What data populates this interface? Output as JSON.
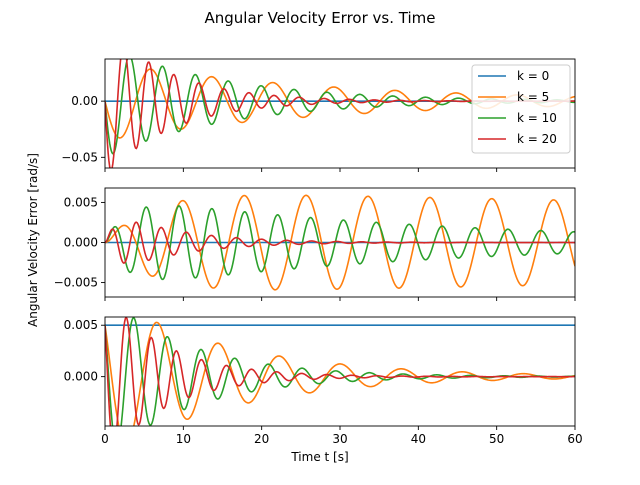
{
  "chart_data": {
    "type": "line",
    "title": "Angular Velocity Error vs. Time",
    "xlabel": "Time t [s]",
    "ylabel": "Angular Velocity Error [rad/s]",
    "xlim": [
      0,
      60
    ],
    "x_ticks": [
      0,
      10,
      20,
      30,
      40,
      50,
      60
    ],
    "x_tick_labels": [
      "0",
      "10",
      "20",
      "30",
      "40",
      "50",
      "60"
    ],
    "grid": false,
    "legend": {
      "placement": "top-right",
      "panel": 0,
      "entries": [
        {
          "label": "k = 0",
          "color": "#1f77b4"
        },
        {
          "label": "k = 5",
          "color": "#ff7f0e"
        },
        {
          "label": "k = 10",
          "color": "#2ca02c"
        },
        {
          "label": "k = 20",
          "color": "#d62728"
        }
      ]
    },
    "panels": [
      {
        "ylim": [
          -0.0595,
          0.0375
        ],
        "y_ticks": [
          0.05,
          0.0,
          -0.05
        ],
        "y_tick_labels": [
          "",
          "0.00",
          "−0.05"
        ],
        "series": [
          {
            "name": "k = 0",
            "color": "#1f77b4",
            "start": 0.0,
            "amp": 0.0,
            "decay": 0.0,
            "period": 7.0
          },
          {
            "name": "k = 5",
            "color": "#ff7f0e",
            "start": 0.0,
            "amp": 0.035,
            "decay": 0.035,
            "period": 7.8
          },
          {
            "name": "k = 10",
            "color": "#2ca02c",
            "start": 0.0,
            "amp": 0.05,
            "decay": 0.065,
            "period": 4.2
          },
          {
            "name": "k = 20",
            "color": "#d62728",
            "start": 0.0,
            "amp": 0.068,
            "decay": 0.12,
            "period": 3.2
          }
        ]
      },
      {
        "ylim": [
          -0.0068,
          0.0068
        ],
        "y_ticks": [
          0.005,
          0.0,
          -0.005
        ],
        "y_tick_labels": [
          "0.005",
          "0.000",
          "−0.005"
        ],
        "series": [
          {
            "name": "k = 0",
            "color": "#1f77b4",
            "start": 0.0,
            "amp": 0.0,
            "decay": 0.0,
            "period": 7.0
          },
          {
            "name": "k = 5",
            "color": "#ff7f0e",
            "start": 0.0,
            "amp": 0.0065,
            "decay": 0.0035,
            "period": 7.9,
            "rise": 0.18
          },
          {
            "name": "k = 10",
            "color": "#2ca02c",
            "start": 0.0,
            "amp": 0.006,
            "decay": 0.025,
            "period": 4.2,
            "rise": 0.35
          },
          {
            "name": "k = 20",
            "color": "#d62728",
            "start": 0.0,
            "amp": 0.0045,
            "decay": 0.12,
            "period": 3.2,
            "rise": 0.6
          }
        ]
      },
      {
        "ylim": [
          -0.0048,
          0.0058
        ],
        "y_ticks": [
          0.005,
          0.0
        ],
        "y_tick_labels": [
          "0.005",
          "0.000"
        ],
        "series": [
          {
            "name": "k = 0",
            "color": "#1f77b4",
            "start": 0.005,
            "amp": 0.0,
            "decay": 0.0,
            "period": 7.0
          },
          {
            "name": "k = 5",
            "color": "#ff7f0e",
            "start": 0.005,
            "amp": 0.0062,
            "decay": 0.062,
            "period": 7.8
          },
          {
            "name": "k = 10",
            "color": "#2ca02c",
            "start": 0.005,
            "amp": 0.0062,
            "decay": 0.09,
            "period": 4.3
          },
          {
            "name": "k = 20",
            "color": "#d62728",
            "start": 0.005,
            "amp": 0.0065,
            "decay": 0.13,
            "period": 3.2
          }
        ]
      }
    ]
  }
}
